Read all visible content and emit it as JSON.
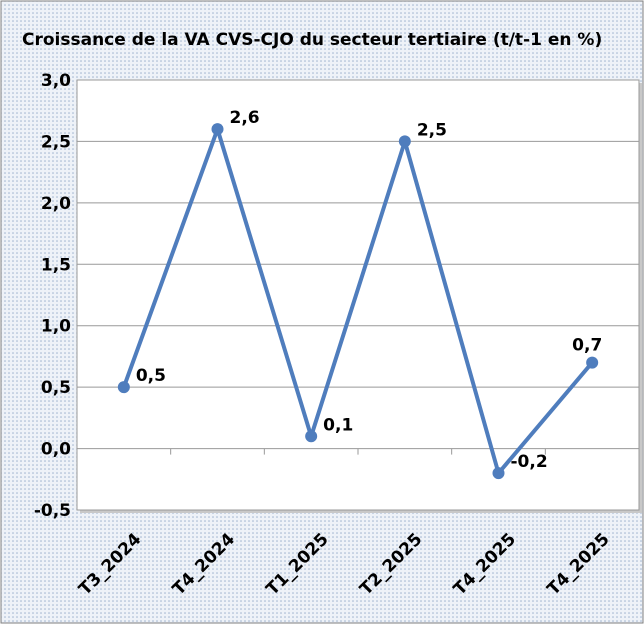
{
  "chart_data": {
    "type": "line",
    "title": "Croissance de la VA CVS-CJO du secteur tertiaire (t/t-1 en %)",
    "categories": [
      "T3_2024",
      "T4_2024",
      "T1_2025",
      "T2_2025",
      "T4_2025",
      "T4_2025"
    ],
    "series": [
      {
        "name": "Croissance",
        "color": "#4f7dbd",
        "values": [
          0.5,
          2.6,
          0.1,
          2.5,
          -0.2,
          0.7
        ],
        "value_labels": [
          "0,5",
          "2,6",
          "0,1",
          "2,5",
          "-0,2",
          "0,7"
        ]
      }
    ],
    "ylim": [
      -0.5,
      3.0
    ],
    "yticks": [
      {
        "value": -0.5,
        "label": "-0,5"
      },
      {
        "value": 0,
        "label": "0,0"
      },
      {
        "value": 0.5,
        "label": "0,5"
      },
      {
        "value": 1.0,
        "label": "1,0"
      },
      {
        "value": 1.5,
        "label": "1,5"
      },
      {
        "value": 2.0,
        "label": "2,0"
      },
      {
        "value": 2.5,
        "label": "2,5"
      },
      {
        "value": 3.0,
        "label": "3,0"
      }
    ],
    "grid": true
  }
}
